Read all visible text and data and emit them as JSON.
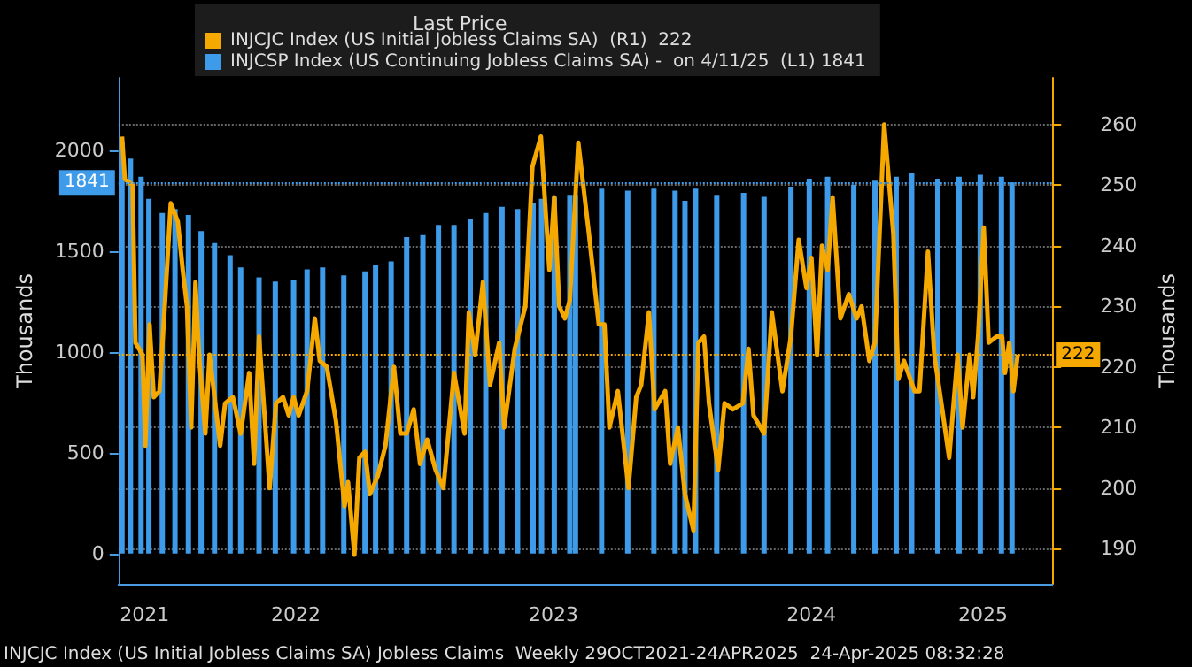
{
  "chart_data": {
    "type": "bar",
    "legend_title": "Last Price",
    "ylabel": "Thousands",
    "y2label": "Thousands",
    "legend": "top left",
    "grid": true,
    "xlim": [
      "2021-10-24",
      "2025-06-07"
    ],
    "xticks": [
      {
        "value": "2021-11-30",
        "label": "2021"
      },
      {
        "value": "2022-07-02",
        "label": "2022"
      },
      {
        "value": "2023-07-02",
        "label": "2023"
      },
      {
        "value": "2024-07-01",
        "label": "2024"
      },
      {
        "value": "2025-03-01",
        "label": "2025"
      }
    ],
    "ylim": [
      -150,
      2360
    ],
    "yticks": [
      0,
      500,
      1000,
      1500,
      2000
    ],
    "y2lim": [
      184.2,
      267.7
    ],
    "y2ticks": [
      190,
      200,
      210,
      220,
      230,
      240,
      250,
      260
    ],
    "ref_lines": [
      {
        "axis": "y",
        "value": 1841,
        "label": "1841",
        "color": "#3d9be9",
        "line_style": "dotted"
      },
      {
        "axis": "y2",
        "value": 222,
        "label": "222",
        "color": "#f5a800",
        "line_style": "dotted"
      }
    ],
    "annotations": [
      "INJCJC Index (US Initial Jobless Claims SA) Jobless Claims  Weekly 29OCT2021-24APR2025  24-Apr-2025 08:32:28"
    ],
    "series": [
      {
        "name": "INJCJC Index (US Initial Jobless Claims SA)  (R1)  222",
        "type": "line",
        "axis": "y2",
        "color": "#f5a800",
        "x": [
          "2021-10-29",
          "2021-11-02",
          "2021-11-13",
          "2021-11-17",
          "2021-11-27",
          "2021-12-01",
          "2021-12-07",
          "2021-12-13",
          "2021-12-21",
          "2021-12-28",
          "2022-01-06",
          "2022-01-16",
          "2022-01-23",
          "2022-01-29",
          "2022-02-04",
          "2022-02-10",
          "2022-02-15",
          "2022-02-24",
          "2022-03-02",
          "2022-03-17",
          "2022-03-24",
          "2022-04-04",
          "2022-04-15",
          "2022-04-27",
          "2022-05-04",
          "2022-05-11",
          "2022-05-26",
          "2022-06-04",
          "2022-06-14",
          "2022-06-22",
          "2022-06-29",
          "2022-07-06",
          "2022-07-18",
          "2022-07-29",
          "2022-08-05",
          "2022-08-15",
          "2022-08-28",
          "2022-09-09",
          "2022-09-14",
          "2022-09-23",
          "2022-09-30",
          "2022-10-08",
          "2022-10-15",
          "2022-10-26",
          "2022-11-06",
          "2022-11-18",
          "2022-11-27",
          "2022-12-06",
          "2022-12-16",
          "2022-12-25",
          "2023-01-04",
          "2023-01-16",
          "2023-01-27",
          "2023-02-11",
          "2023-02-26",
          "2023-03-04",
          "2023-03-13",
          "2023-03-24",
          "2023-04-03",
          "2023-04-16",
          "2023-04-23",
          "2023-05-08",
          "2023-05-23",
          "2023-06-02",
          "2023-06-14",
          "2023-06-26",
          "2023-07-03",
          "2023-07-10",
          "2023-07-18",
          "2023-07-25",
          "2023-08-06",
          "2023-08-21",
          "2023-09-04",
          "2023-09-12",
          "2023-09-19",
          "2023-10-01",
          "2023-10-16",
          "2023-10-27",
          "2023-11-03",
          "2023-11-14",
          "2023-11-22",
          "2023-12-07",
          "2023-12-14",
          "2023-12-25",
          "2024-01-04",
          "2024-01-16",
          "2024-01-23",
          "2024-01-31",
          "2024-02-07",
          "2024-02-20",
          "2024-02-29",
          "2024-03-12",
          "2024-03-26",
          "2024-04-03",
          "2024-04-10",
          "2024-04-25",
          "2024-05-06",
          "2024-05-21",
          "2024-06-02",
          "2024-06-13",
          "2024-06-24",
          "2024-07-01",
          "2024-07-09",
          "2024-07-16",
          "2024-07-24",
          "2024-07-31",
          "2024-08-11",
          "2024-08-23",
          "2024-09-03",
          "2024-09-10",
          "2024-09-21",
          "2024-09-29",
          "2024-10-12",
          "2024-10-25",
          "2024-11-01",
          "2024-11-09",
          "2024-11-24",
          "2024-12-01",
          "2024-12-13",
          "2024-12-22",
          "2025-01-01",
          "2025-01-12",
          "2025-01-24",
          "2025-01-31",
          "2025-02-10",
          "2025-02-15",
          "2025-02-22",
          "2025-03-02",
          "2025-03-09",
          "2025-03-20",
          "2025-03-28",
          "2025-04-01",
          "2025-04-07",
          "2025-04-13",
          "2025-04-19"
        ],
        "values": [
          258,
          251,
          250,
          224,
          222,
          207,
          227,
          215,
          216,
          229,
          247,
          244,
          236,
          230,
          210,
          234,
          222,
          209,
          222,
          207,
          214,
          215,
          209,
          219,
          204,
          225,
          200,
          214,
          215,
          212,
          215,
          212,
          216,
          228,
          221,
          220,
          211,
          197,
          201,
          189,
          205,
          206,
          199,
          202,
          207,
          220,
          209,
          209,
          213,
          204,
          208,
          203,
          200,
          219,
          209,
          229,
          222,
          234,
          217,
          224,
          210,
          223,
          230,
          253,
          258,
          236,
          248,
          230,
          228,
          231,
          257,
          242,
          227,
          227,
          210,
          216,
          200,
          215,
          217,
          229,
          213,
          216,
          204,
          210,
          199,
          193,
          224,
          225,
          214,
          203,
          214,
          213,
          214,
          223,
          212,
          209,
          229,
          216,
          225,
          241,
          233,
          238,
          222,
          240,
          236,
          248,
          228,
          232,
          228,
          230,
          221,
          224,
          260,
          242,
          218,
          221,
          216,
          216,
          239,
          222,
          214,
          205,
          222,
          210,
          222,
          215,
          225,
          243,
          224,
          225,
          225,
          219,
          224,
          216,
          222
        ]
      },
      {
        "name": "INJCSP Index (US Continuing Jobless Claims SA) -  on 4/11/25  (L1) 1841",
        "axis": "y",
        "color": "#3d9be9",
        "x": [
          "2021-10-29",
          "2021-11-10",
          "2021-11-25",
          "2021-12-06",
          "2021-12-25",
          "2022-01-12",
          "2022-01-31",
          "2022-02-18",
          "2022-03-09",
          "2022-03-31",
          "2022-04-15",
          "2022-05-11",
          "2022-06-03",
          "2022-06-29",
          "2022-07-18",
          "2022-08-09",
          "2022-09-08",
          "2022-10-08",
          "2022-10-23",
          "2022-11-14",
          "2022-12-06",
          "2022-12-29",
          "2023-01-20",
          "2023-02-11",
          "2023-03-06",
          "2023-03-28",
          "2023-04-20",
          "2023-05-12",
          "2023-06-03",
          "2023-06-15",
          "2023-07-03",
          "2023-07-25",
          "2023-08-02",
          "2023-09-08",
          "2023-10-15",
          "2023-11-21",
          "2023-12-21",
          "2024-01-04",
          "2024-01-19",
          "2024-02-18",
          "2024-03-27",
          "2024-04-25",
          "2024-06-02",
          "2024-06-28",
          "2024-07-24",
          "2024-08-30",
          "2024-09-29",
          "2024-10-29",
          "2024-11-20",
          "2024-12-27",
          "2025-01-26",
          "2025-02-25",
          "2025-03-27",
          "2025-04-11"
        ],
        "values": [
          2040,
          1960,
          1870,
          1760,
          1690,
          1710,
          1680,
          1600,
          1540,
          1480,
          1420,
          1370,
          1350,
          1360,
          1410,
          1420,
          1380,
          1400,
          1430,
          1450,
          1570,
          1580,
          1630,
          1630,
          1660,
          1690,
          1720,
          1710,
          1740,
          1760,
          1770,
          1780,
          1780,
          1810,
          1800,
          1810,
          1800,
          1750,
          1810,
          1780,
          1790,
          1770,
          1820,
          1860,
          1870,
          1830,
          1850,
          1870,
          1890,
          1860,
          1870,
          1880,
          1870,
          1841
        ]
      }
    ]
  }
}
